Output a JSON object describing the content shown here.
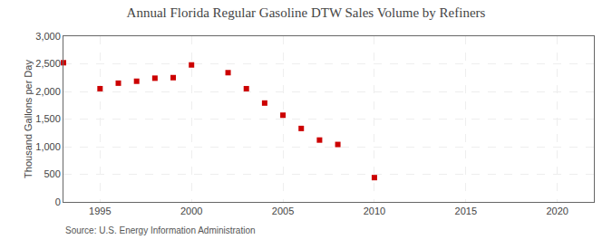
{
  "chart_data": {
    "type": "scatter",
    "title": "Annual Florida Regular Gasoline DTW Sales Volume by Refiners",
    "ylabel": "Thousand Gallons per Day",
    "annotations": [
      "Source: U.S. Energy Information Administration"
    ],
    "x": [
      1993,
      1995,
      1996,
      1997,
      1998,
      1999,
      2000,
      2002,
      2003,
      2004,
      2005,
      2006,
      2007,
      2008,
      2010
    ],
    "values": [
      2520,
      2050,
      2150,
      2185,
      2240,
      2250,
      2480,
      2340,
      2050,
      1790,
      1570,
      1330,
      1120,
      1040,
      440
    ],
    "color": "#cc0000",
    "marker": "square",
    "xlim": [
      1993,
      2022
    ],
    "ylim": [
      0,
      3000
    ],
    "xticks": [
      1995,
      2000,
      2005,
      2010,
      2015,
      2020
    ],
    "yticks": [
      0,
      500,
      {
        "value": 1000,
        "label": "1,000"
      },
      {
        "value": 1500,
        "label": "1,500"
      },
      {
        "value": 2000,
        "label": "2,000"
      },
      {
        "value": 2500,
        "label": "2,500"
      },
      {
        "value": 3000,
        "label": "3,000"
      }
    ],
    "grid": true
  }
}
